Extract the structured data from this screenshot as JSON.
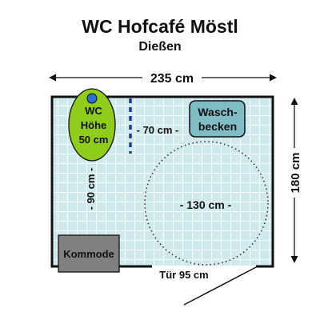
{
  "title": "WC Hofcafé Möstl",
  "subtitle": "Dießen",
  "dimensions": {
    "width": "235 cm",
    "height": "180 cm",
    "gap_toilet_basin": "- 70 cm -",
    "toilet_front": "- 90 cm -",
    "turning_circle": "- 130 cm -",
    "door": "Tür 95 cm"
  },
  "fixtures": {
    "toilet_lines": [
      "WC",
      "Höhe",
      "50 cm"
    ],
    "basin_lines": [
      "Wasch-",
      "becken"
    ],
    "cabinet": "Kommode"
  },
  "colors": {
    "floor": "#cfe9ec",
    "grid": "#ffffff",
    "wall": "#111111",
    "toilet": "#8fcc1c",
    "basin": "#7fbcc4",
    "cabinet": "#808080",
    "grab_bar": "#1f3a9a",
    "marker": "#2a6fd6"
  }
}
